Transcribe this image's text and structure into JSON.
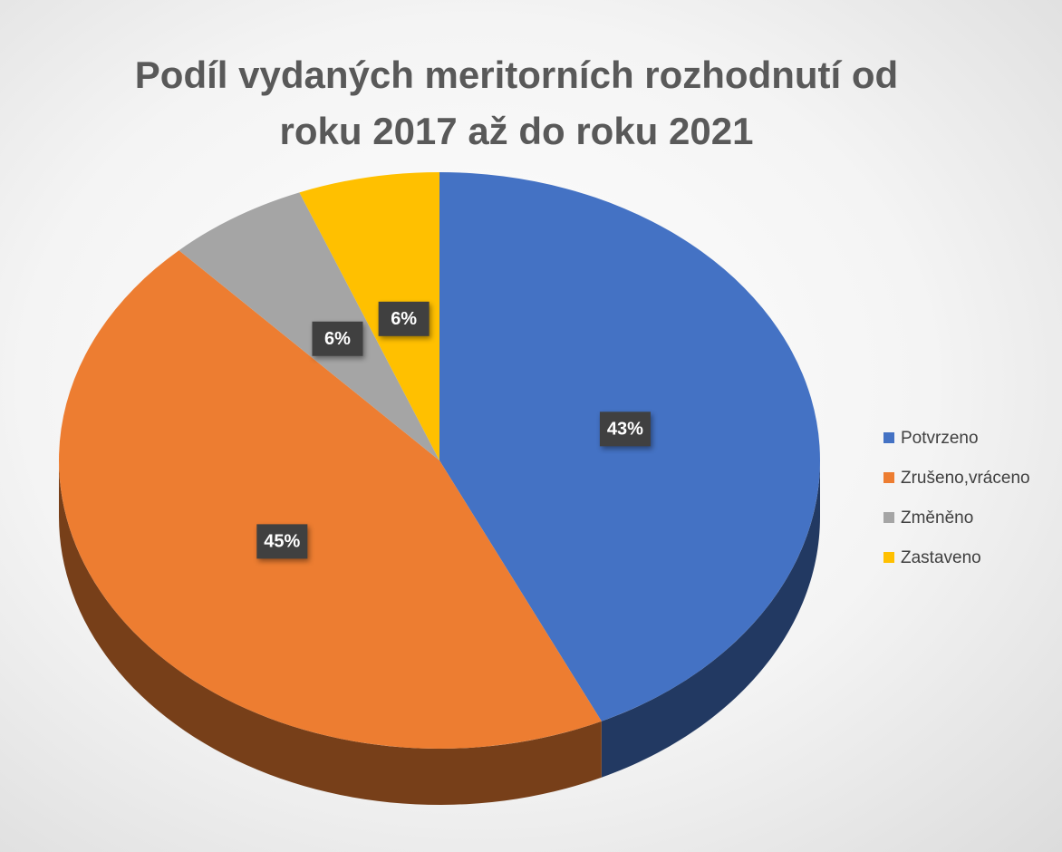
{
  "chart_data": {
    "type": "pie",
    "title": "Podíl vydaných meritorních rozhodnutí od roku 2017 až do roku 2021",
    "categories": [
      "Potvrzeno",
      "Zrušeno,vráceno",
      "Změněno",
      "Zastaveno"
    ],
    "values": [
      43,
      45,
      6,
      6
    ],
    "value_labels": [
      "43%",
      "45%",
      "6%",
      "6%"
    ],
    "colors": [
      "#4472c4",
      "#ed7d31",
      "#a5a5a5",
      "#ffc000"
    ],
    "legend": "right"
  }
}
